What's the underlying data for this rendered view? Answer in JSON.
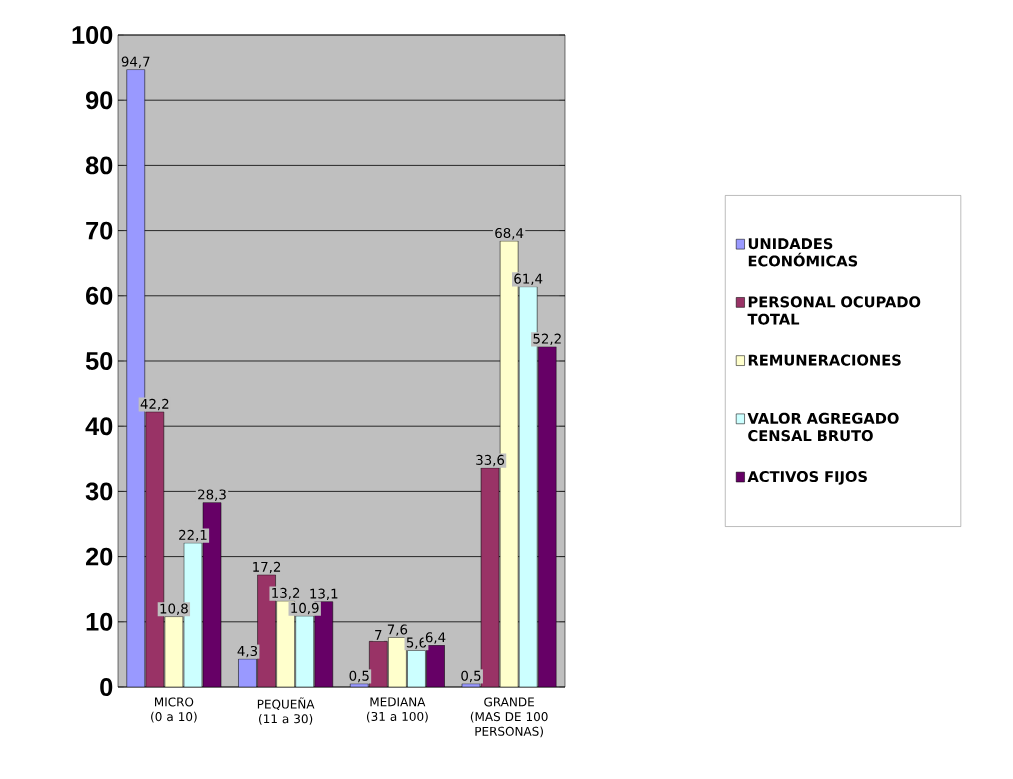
{
  "chart_data": {
    "type": "bar",
    "categories": [
      "MICRO (0 a 10)",
      "PEQUEÑA (11 a 30)",
      "MEDIANA (31 a 100)",
      "GRANDE (MAS DE 100 PERSONAS)"
    ],
    "series": [
      {
        "name": "UNIDADES ECONÓMICAS",
        "color": "#9999ff",
        "values": [
          94.7,
          4.3,
          0.5,
          0.5
        ],
        "value_labels": [
          "94,7",
          "4,3",
          "0,5",
          "0,5"
        ]
      },
      {
        "name": "PERSONAL OCUPADO TOTAL",
        "color": "#993366",
        "values": [
          42.2,
          17.2,
          7,
          33.6
        ],
        "value_labels": [
          "42,2",
          "17,2",
          "7",
          "33,6"
        ]
      },
      {
        "name": "REMUNERACIONES",
        "color": "#ffffcc",
        "values": [
          10.8,
          13.2,
          7.6,
          68.4
        ],
        "value_labels": [
          "10,8",
          "13,2",
          "7,6",
          "68,4"
        ]
      },
      {
        "name": "VALOR AGREGADO CENSAL BRUTO",
        "color": "#ccffff",
        "values": [
          22.1,
          10.9,
          5.6,
          61.4
        ],
        "value_labels": [
          "22,1",
          "10,9",
          "5,6",
          "61,4"
        ]
      },
      {
        "name": "ACTIVOS FIJOS",
        "color": "#660066",
        "values": [
          28.3,
          13.1,
          6.4,
          52.2
        ],
        "value_labels": [
          "28,3",
          "13,1",
          "6,4",
          "52,2"
        ]
      }
    ],
    "ylim": [
      0,
      100
    ],
    "yticks": [
      0,
      10,
      20,
      30,
      40,
      50,
      60,
      70,
      80,
      90,
      100
    ],
    "grid": "y",
    "legend": "right"
  }
}
